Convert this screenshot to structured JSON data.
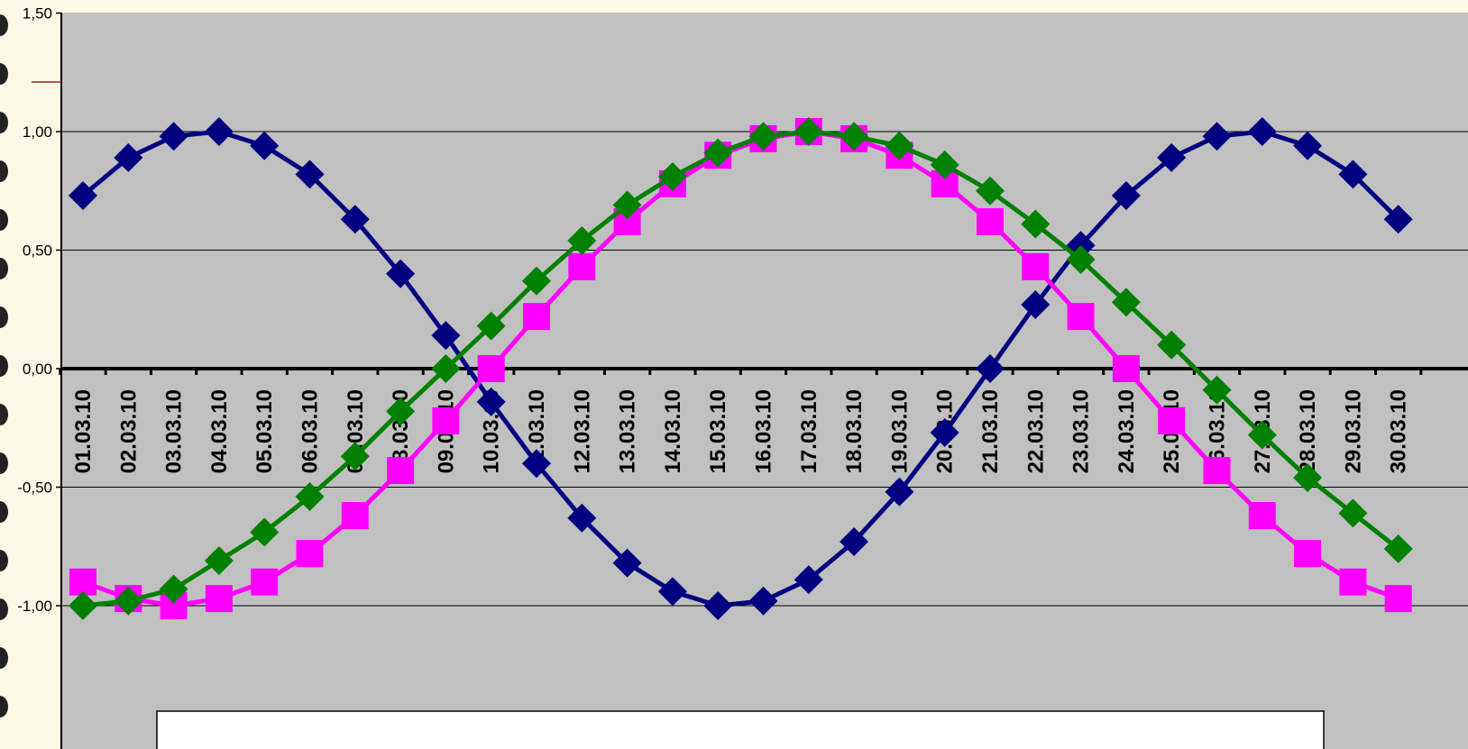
{
  "chart_data": {
    "type": "line",
    "title": "",
    "xlabel": "",
    "ylabel": "",
    "ylim": [
      -1.5,
      1.5
    ],
    "yticks": [
      "-1,00",
      "-0,50",
      "0,00",
      "0,50",
      "1,00",
      "1,50"
    ],
    "grid": true,
    "plot_background": "#c0c0c0",
    "page_background": "#fbf8e6",
    "categories": [
      "01.03.10",
      "02.03.10",
      "03.03.10",
      "04.03.10",
      "05.03.10",
      "06.03.10",
      "07.03.10",
      "08.03.10",
      "09.03.10",
      "10.03.10",
      "11.03.10",
      "12.03.10",
      "13.03.10",
      "14.03.10",
      "15.03.10",
      "16.03.10",
      "17.03.10",
      "18.03.10",
      "19.03.10",
      "20.03.10",
      "21.03.10",
      "22.03.10",
      "23.03.10",
      "24.03.10",
      "25.03.10",
      "26.03.10",
      "27.03.10",
      "28.03.10",
      "29.03.10",
      "30.03.10"
    ],
    "series": [
      {
        "color": "#000080",
        "marker": "diamond",
        "values": [
          0.73,
          0.89,
          0.98,
          1.0,
          0.94,
          0.82,
          0.63,
          0.4,
          0.14,
          -0.14,
          -0.4,
          -0.63,
          -0.82,
          -0.94,
          -1.0,
          -0.98,
          -0.89,
          -0.73,
          -0.52,
          -0.27,
          0.0,
          0.27,
          0.52,
          0.73,
          0.89,
          0.98,
          1.0,
          0.94,
          0.82,
          0.63
        ]
      },
      {
        "color": "#ff00ff",
        "marker": "square",
        "values": [
          -0.9,
          -0.97,
          -1.0,
          -0.97,
          -0.9,
          -0.78,
          -0.62,
          -0.43,
          -0.22,
          0.0,
          0.22,
          0.43,
          0.62,
          0.78,
          0.9,
          0.97,
          1.0,
          0.97,
          0.9,
          0.78,
          0.62,
          0.43,
          0.22,
          0.0,
          -0.22,
          -0.43,
          -0.62,
          -0.78,
          -0.9,
          -0.97
        ]
      },
      {
        "color": "#008000",
        "marker": "diamond",
        "values": [
          -1.0,
          -0.98,
          -0.93,
          -0.81,
          -0.69,
          -0.54,
          -0.37,
          -0.18,
          0.0,
          0.18,
          0.37,
          0.54,
          0.69,
          0.81,
          0.91,
          0.98,
          1.0,
          0.98,
          0.94,
          0.86,
          0.75,
          0.61,
          0.46,
          0.28,
          0.1,
          -0.09,
          -0.28,
          -0.46,
          -0.61,
          -0.76
        ]
      }
    ]
  }
}
